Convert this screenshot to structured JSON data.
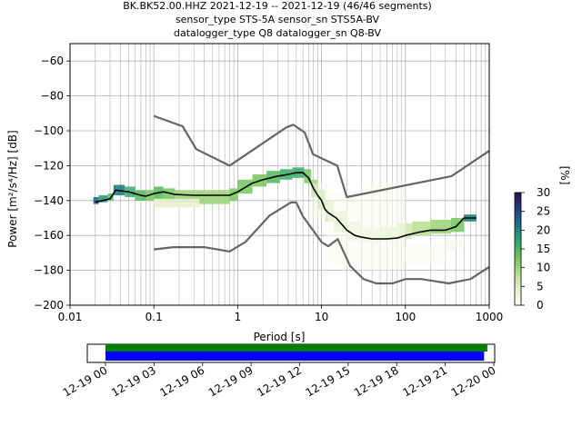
{
  "chart_data": {
    "type": "heatmap",
    "title_lines": [
      "BK.BK52.00.HHZ   2021-12-19 -- 2021-12-19  (46/46 segments)",
      "sensor_type STS-5A sensor_sn STS5A-BV",
      "datalogger_type Q8 datalogger_sn Q8-BV"
    ],
    "xlabel": "Period [s]",
    "ylabel": "Power [m²/s⁴/Hz] [dB]",
    "x_scale": "log",
    "xlim": [
      0.01,
      1000
    ],
    "ylim": [
      -200,
      -50
    ],
    "x_ticks": [
      0.01,
      0.1,
      1,
      10,
      100,
      1000
    ],
    "x_tick_labels": [
      "0.01",
      "0.1",
      "1",
      "10",
      "100",
      "1000"
    ],
    "y_ticks": [
      -200,
      -180,
      -160,
      -140,
      -120,
      -100,
      -80,
      -60
    ],
    "y_tick_labels": [
      "−200",
      "−180",
      "−160",
      "−140",
      "−120",
      "−100",
      "−80",
      "−60"
    ],
    "grid": true,
    "colorbar": {
      "label": "[%]",
      "range": [
        0,
        30
      ],
      "ticks": [
        0,
        5,
        10,
        15,
        20,
        25,
        30
      ],
      "colors": [
        "#ffffff",
        "#e8f0cc",
        "#b8dd8c",
        "#6cc55a",
        "#2ea678",
        "#1f6f8a",
        "#2b3d80",
        "#2b1048"
      ]
    },
    "series": [
      {
        "name": "NHNM",
        "color": "#666666",
        "x": [
          0.1,
          0.22,
          0.32,
          0.8,
          3.8,
          4.6,
          6.3,
          7.9,
          15.4,
          20,
          354.8,
          1000
        ],
        "y": [
          -91.5,
          -97.4,
          -110.5,
          -120,
          -98,
          -96.5,
          -101,
          -113.5,
          -120,
          -138,
          -126,
          -111.5
        ]
      },
      {
        "name": "NLNM",
        "color": "#666666",
        "x": [
          0.1,
          0.17,
          0.4,
          0.8,
          1.24,
          2.4,
          4.3,
          5,
          6,
          10,
          12,
          15.6,
          21.9,
          31.6,
          45,
          70,
          101,
          154,
          328,
          600,
          1000
        ],
        "y": [
          -168,
          -166.7,
          -166.7,
          -169.2,
          -163.7,
          -148.6,
          -141.1,
          -141.1,
          -149,
          -163.8,
          -166.2,
          -162.1,
          -177.5,
          -185,
          -187.5,
          -187.5,
          -185,
          -185,
          -187.5,
          -185,
          -178
        ]
      },
      {
        "name": "median",
        "color": "#000000",
        "x": [
          0.02,
          0.03,
          0.035,
          0.05,
          0.07,
          0.08,
          0.1,
          0.13,
          0.18,
          0.3,
          0.5,
          0.8,
          1,
          1.5,
          2,
          3,
          4,
          5,
          6,
          7,
          8,
          9,
          10,
          11,
          12,
          15,
          20,
          25,
          30,
          40,
          60,
          80,
          100,
          150,
          200,
          300,
          400,
          500,
          700
        ],
        "y": [
          -141,
          -139,
          -134,
          -135,
          -137,
          -137.5,
          -136,
          -135,
          -136.5,
          -137,
          -137,
          -137,
          -135,
          -130,
          -128,
          -126,
          -125,
          -124,
          -124,
          -127,
          -133,
          -137,
          -140,
          -145,
          -147,
          -150,
          -157,
          -160,
          -161,
          -162,
          -162,
          -161.5,
          -160,
          -158,
          -157,
          -157,
          -155,
          -150,
          -150
        ]
      }
    ],
    "density": [
      {
        "x": [
          0.019,
          0.022
        ],
        "y": [
          -142,
          -138
        ],
        "c": 22
      },
      {
        "x": [
          0.022,
          0.028
        ],
        "y": [
          -141,
          -137
        ],
        "c": 18
      },
      {
        "x": [
          0.028,
          0.033
        ],
        "y": [
          -140,
          -136
        ],
        "c": 14
      },
      {
        "x": [
          0.033,
          0.045
        ],
        "y": [
          -137,
          -131
        ],
        "c": 20
      },
      {
        "x": [
          0.045,
          0.06
        ],
        "y": [
          -138,
          -132
        ],
        "c": 16
      },
      {
        "x": [
          0.06,
          0.08
        ],
        "y": [
          -140,
          -134
        ],
        "c": 14
      },
      {
        "x": [
          0.08,
          0.1
        ],
        "y": [
          -140,
          -134
        ],
        "c": 12
      },
      {
        "x": [
          0.1,
          0.13
        ],
        "y": [
          -139,
          -132
        ],
        "c": 14
      },
      {
        "x": [
          0.13,
          0.18
        ],
        "y": [
          -140,
          -133
        ],
        "c": 12
      },
      {
        "x": [
          0.18,
          0.3
        ],
        "y": [
          -141,
          -134
        ],
        "c": 10
      },
      {
        "x": [
          0.3,
          0.5
        ],
        "y": [
          -142,
          -134
        ],
        "c": 10
      },
      {
        "x": [
          0.5,
          0.8
        ],
        "y": [
          -142,
          -134
        ],
        "c": 10
      },
      {
        "x": [
          0.8,
          1.0
        ],
        "y": [
          -140,
          -133
        ],
        "c": 12
      },
      {
        "x": [
          1.0,
          1.5
        ],
        "y": [
          -136,
          -128
        ],
        "c": 12
      },
      {
        "x": [
          1.5,
          2.2
        ],
        "y": [
          -132,
          -125
        ],
        "c": 12
      },
      {
        "x": [
          2.2,
          3.2
        ],
        "y": [
          -130,
          -123
        ],
        "c": 14
      },
      {
        "x": [
          3.2,
          4.5
        ],
        "y": [
          -128,
          -122
        ],
        "c": 16
      },
      {
        "x": [
          4.5,
          6.2
        ],
        "y": [
          -127,
          -121
        ],
        "c": 16
      },
      {
        "x": [
          6.2,
          7.5
        ],
        "y": [
          -130,
          -122
        ],
        "c": 12
      },
      {
        "x": [
          7.5,
          9.0
        ],
        "y": [
          -138,
          -128
        ],
        "c": 10
      },
      {
        "x": [
          9.0,
          11
        ],
        "y": [
          -145,
          -134
        ],
        "c": 8
      },
      {
        "x": [
          11,
          14
        ],
        "y": [
          -152,
          -140
        ],
        "c": 6
      },
      {
        "x": [
          14,
          20
        ],
        "y": [
          -158,
          -146
        ],
        "c": 5
      },
      {
        "x": [
          20,
          30
        ],
        "y": [
          -163,
          -152
        ],
        "c": 4
      },
      {
        "x": [
          30,
          50
        ],
        "y": [
          -164,
          -156
        ],
        "c": 4
      },
      {
        "x": [
          50,
          80
        ],
        "y": [
          -163,
          -155
        ],
        "c": 5
      },
      {
        "x": [
          80,
          120
        ],
        "y": [
          -162,
          -153
        ],
        "c": 6
      },
      {
        "x": [
          120,
          200
        ],
        "y": [
          -160,
          -152
        ],
        "c": 8
      },
      {
        "x": [
          200,
          350
        ],
        "y": [
          -159,
          -151
        ],
        "c": 10
      },
      {
        "x": [
          350,
          500
        ],
        "y": [
          -158,
          -150
        ],
        "c": 12
      },
      {
        "x": [
          500,
          700
        ],
        "y": [
          -152,
          -148
        ],
        "c": 20
      },
      {
        "x": [
          7.5,
          12
        ],
        "y": [
          -150,
          -130
        ],
        "c": 2
      },
      {
        "x": [
          12,
          30
        ],
        "y": [
          -178,
          -135
        ],
        "c": 1
      },
      {
        "x": [
          30,
          100
        ],
        "y": [
          -180,
          -130
        ],
        "c": 1
      },
      {
        "x": [
          100,
          300
        ],
        "y": [
          -176,
          -165
        ],
        "c": 1
      },
      {
        "x": [
          300,
          500
        ],
        "y": [
          -168,
          -162
        ],
        "c": 2
      },
      {
        "x": [
          0.1,
          0.35
        ],
        "y": [
          -144,
          -139
        ],
        "c": 4
      }
    ],
    "timeline": {
      "tick_labels": [
        "12-19 00",
        "12-19 03",
        "12-19 06",
        "12-19 09",
        "12-19 12",
        "12-19 15",
        "12-19 18",
        "12-19 21",
        "12-20 00"
      ],
      "green_bar": {
        "start_h": 0,
        "end_h": 23.6,
        "color": "#008000"
      },
      "blue_bar": {
        "start_h": 0,
        "end_h": 23.4,
        "color": "#0000ff"
      }
    }
  }
}
